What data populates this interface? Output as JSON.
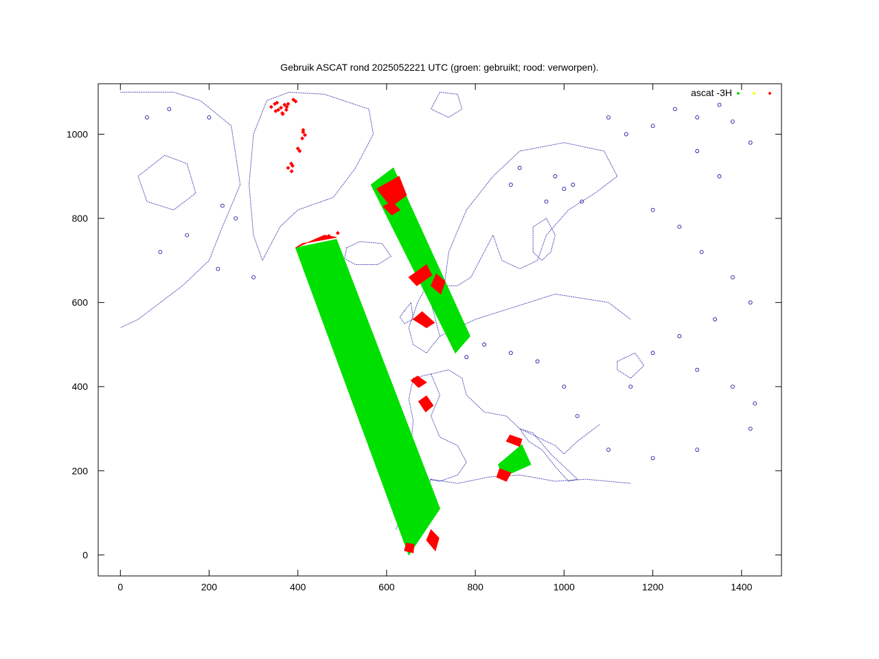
{
  "chart_data": {
    "type": "scatter",
    "title": "Gebruik ASCAT rond 2025052221 UTC (groen: gebruikt; rood: verworpen).",
    "xlabel": "",
    "ylabel": "",
    "xlim": [
      -50,
      1490
    ],
    "ylim": [
      -50,
      1120
    ],
    "xticks": [
      0,
      200,
      400,
      600,
      800,
      1000,
      1200,
      1400
    ],
    "yticks": [
      0,
      200,
      400,
      600,
      800,
      1000
    ],
    "grid": false,
    "legend_position": "top-right",
    "legend": {
      "label": "ascat -3H",
      "symbols": [
        {
          "color": "#00e000"
        },
        {
          "color": "#ffff00"
        },
        {
          "color": "#ff0000"
        }
      ]
    },
    "series": [
      {
        "color": "#00e000",
        "regions": [
          [
            [
              395,
              730
            ],
            [
              487,
              750
            ],
            [
              720,
              110
            ],
            [
              650,
              0
            ]
          ],
          [
            [
              565,
              880
            ],
            [
              615,
              920
            ],
            [
              788,
              520
            ],
            [
              755,
              480
            ]
          ],
          [
            [
              852,
              215
            ],
            [
              905,
              262
            ],
            [
              925,
              215
            ],
            [
              862,
              185
            ]
          ]
        ]
      },
      {
        "color": "#ff0000",
        "regions": [
          [
            [
              578,
              870
            ],
            [
              610,
              828
            ],
            [
              645,
              855
            ],
            [
              628,
              900
            ]
          ],
          [
            [
              592,
              828
            ],
            [
              612,
              808
            ],
            [
              630,
              820
            ],
            [
              612,
              840
            ]
          ],
          [
            [
              650,
              660
            ],
            [
              668,
              640
            ],
            [
              702,
              665
            ],
            [
              690,
              690
            ]
          ],
          [
            [
              700,
              640
            ],
            [
              722,
              620
            ],
            [
              732,
              650
            ],
            [
              712,
              668
            ]
          ],
          [
            [
              660,
              560
            ],
            [
              690,
              540
            ],
            [
              708,
              552
            ],
            [
              680,
              578
            ]
          ],
          [
            [
              655,
              415
            ],
            [
              672,
              398
            ],
            [
              690,
              410
            ],
            [
              670,
              425
            ]
          ],
          [
            [
              672,
              365
            ],
            [
              688,
              340
            ],
            [
              705,
              355
            ],
            [
              690,
              378
            ]
          ],
          [
            [
              870,
              270
            ],
            [
              900,
              258
            ],
            [
              905,
              275
            ],
            [
              878,
              285
            ]
          ],
          [
            [
              848,
              185
            ],
            [
              870,
              175
            ],
            [
              880,
              195
            ],
            [
              855,
              205
            ]
          ],
          [
            [
              690,
              35
            ],
            [
              710,
              10
            ],
            [
              718,
              40
            ],
            [
              700,
              60
            ]
          ],
          [
            [
              640,
              10
            ],
            [
              660,
              5
            ],
            [
              662,
              25
            ],
            [
              645,
              28
            ]
          ],
          [
            [
              395,
              730
            ],
            [
              460,
              760
            ],
            [
              487,
              755
            ],
            [
              410,
              740
            ]
          ]
        ],
        "points": [
          [
            340,
            1065
          ],
          [
            356,
            1058
          ],
          [
            362,
            1063
          ],
          [
            348,
            1072
          ],
          [
            370,
            1070
          ],
          [
            374,
            1058
          ],
          [
            353,
            1075
          ],
          [
            375,
            1065
          ],
          [
            366,
            1048
          ],
          [
            412,
            1005
          ],
          [
            410,
            990
          ],
          [
            416,
            998
          ],
          [
            404,
            960
          ],
          [
            400,
            966
          ],
          [
            385,
            930
          ],
          [
            378,
            920
          ],
          [
            386,
            912
          ],
          [
            388,
            925
          ],
          [
            365,
            1050
          ],
          [
            350,
            1055
          ],
          [
            378,
            1072
          ],
          [
            390,
            1082
          ],
          [
            395,
            1078
          ],
          [
            412,
            1010
          ],
          [
            490,
            765
          ],
          [
            470,
            758
          ]
        ]
      }
    ],
    "basemap_color": "#000099"
  }
}
